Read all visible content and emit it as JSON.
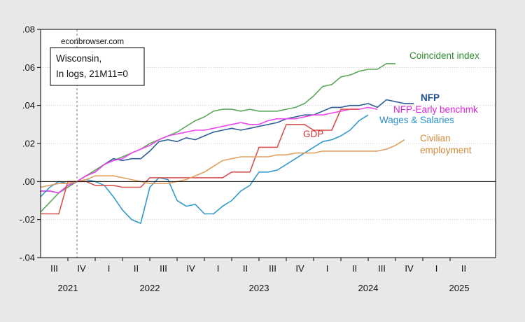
{
  "chart_data": {
    "type": "line",
    "watermark": "econbrowser.com",
    "legend_box": [
      "Wisconsin,",
      "In logs, 21M11=0"
    ],
    "yticks": [
      ".08",
      ".06",
      ".04",
      ".02",
      ".00",
      "-.02",
      "-.04"
    ],
    "ylim": [
      -0.04,
      0.08
    ],
    "xlim": [
      "2021-07",
      "2025-09"
    ],
    "quarter_ticks": [
      "III",
      "IV",
      "I",
      "II",
      "III",
      "IV",
      "I",
      "II",
      "III",
      "IV",
      "I",
      "II",
      "III",
      "IV",
      "I",
      "II"
    ],
    "year_labels": [
      "2021",
      "2022",
      "2023",
      "2024",
      "2025"
    ],
    "reference_line": "2021-11",
    "zero_line": 0,
    "series": [
      {
        "name": "Coincident index",
        "color": "#5aa85a",
        "start": "2021-07",
        "values": [
          -0.016,
          -0.011,
          -0.006,
          -0.003,
          0.0,
          0.003,
          0.006,
          0.009,
          0.011,
          0.013,
          0.015,
          0.017,
          0.02,
          0.022,
          0.024,
          0.026,
          0.029,
          0.032,
          0.034,
          0.037,
          0.038,
          0.038,
          0.037,
          0.038,
          0.037,
          0.037,
          0.037,
          0.038,
          0.039,
          0.041,
          0.045,
          0.05,
          0.051,
          0.055,
          0.056,
          0.058,
          0.059,
          0.059,
          0.062,
          0.062
        ]
      },
      {
        "name": "NFP",
        "color": "#2f5f95",
        "start": "2021-07",
        "values": [
          -0.005,
          -0.005,
          -0.006,
          -0.002,
          0.0,
          0.003,
          0.005,
          0.009,
          0.012,
          0.011,
          0.012,
          0.012,
          0.016,
          0.021,
          0.022,
          0.021,
          0.023,
          0.022,
          0.024,
          0.026,
          0.027,
          0.028,
          0.027,
          0.028,
          0.029,
          0.03,
          0.031,
          0.033,
          0.034,
          0.035,
          0.035,
          0.037,
          0.039,
          0.039,
          0.04,
          0.04,
          0.041,
          0.039,
          0.043,
          0.042,
          0.041,
          0.041
        ]
      },
      {
        "name": "NFP-Early benchmk",
        "color": "#ee44ee",
        "start": "2021-07",
        "values": [
          -0.005,
          -0.005,
          -0.006,
          -0.002,
          0.0,
          0.003,
          0.005,
          0.009,
          0.011,
          0.012,
          0.015,
          0.017,
          0.019,
          0.022,
          0.024,
          0.025,
          0.026,
          0.027,
          0.027,
          0.028,
          0.029,
          0.03,
          0.031,
          0.03,
          0.03,
          0.032,
          0.033,
          0.033,
          0.033,
          0.034,
          0.035,
          0.035,
          0.036,
          0.037,
          0.038,
          0.038,
          0.039,
          0.038
        ]
      },
      {
        "name": "Wages & Salaries",
        "color": "#3399cc",
        "start": "2021-07",
        "values": [
          -0.008,
          -0.003,
          0.0,
          -0.001,
          0.0,
          0.001,
          0.0,
          -0.002,
          -0.008,
          -0.015,
          -0.02,
          -0.022,
          -0.003,
          0.002,
          0.001,
          -0.01,
          -0.013,
          -0.012,
          -0.017,
          -0.017,
          -0.013,
          -0.01,
          -0.005,
          -0.002,
          0.005,
          0.005,
          0.006,
          0.009,
          0.012,
          0.015,
          0.018,
          0.021,
          0.022,
          0.024,
          0.027,
          0.032,
          0.035
        ]
      },
      {
        "name": "GDP",
        "color": "#d9534f",
        "start": "2021-07",
        "values": [
          -0.017,
          -0.017,
          -0.017,
          0.0,
          0.0,
          0.0,
          -0.002,
          -0.002,
          -0.002,
          -0.003,
          -0.003,
          -0.003,
          0.002,
          0.002,
          0.002,
          0.002,
          0.002,
          0.002,
          0.002,
          0.002,
          0.002,
          0.005,
          0.005,
          0.005,
          0.018,
          0.018,
          0.018,
          0.03,
          0.03,
          0.03,
          0.027,
          0.027,
          0.027,
          0.038,
          0.038,
          0.038
        ]
      },
      {
        "name": "Civilian employment",
        "color": "#e0a060",
        "start": "2021-07",
        "values": [
          -0.003,
          -0.002,
          -0.001,
          -0.001,
          0.0,
          0.001,
          0.003,
          0.003,
          0.003,
          0.002,
          0.001,
          0.0,
          -0.001,
          -0.001,
          -0.001,
          0.0,
          0.001,
          0.003,
          0.005,
          0.008,
          0.011,
          0.012,
          0.013,
          0.013,
          0.013,
          0.013,
          0.014,
          0.014,
          0.015,
          0.015,
          0.015,
          0.016,
          0.016,
          0.016,
          0.016,
          0.016,
          0.016,
          0.016,
          0.017,
          0.019,
          0.022
        ]
      }
    ],
    "series_labels": [
      {
        "name": "Coincident index",
        "lines": [
          "Coincident index"
        ],
        "color": "#2e8b2e",
        "bold": false
      },
      {
        "name": "NFP",
        "lines": [
          "NFP"
        ],
        "color": "#1f4e8c",
        "bold": true
      },
      {
        "name": "NFP-Early benchmk",
        "lines": [
          "NFP-Early benchmk"
        ],
        "color": "#dd22dd",
        "bold": false
      },
      {
        "name": "Wages & Salaries",
        "lines": [
          "Wages & Salaries"
        ],
        "color": "#2a8fc8",
        "bold": false
      },
      {
        "name": "GDP",
        "lines": [
          "GDP"
        ],
        "color": "#cc3333",
        "bold": false
      },
      {
        "name": "Civilian employment",
        "lines": [
          "Civilian",
          "employment"
        ],
        "color": "#d08a3a",
        "bold": false
      }
    ]
  }
}
